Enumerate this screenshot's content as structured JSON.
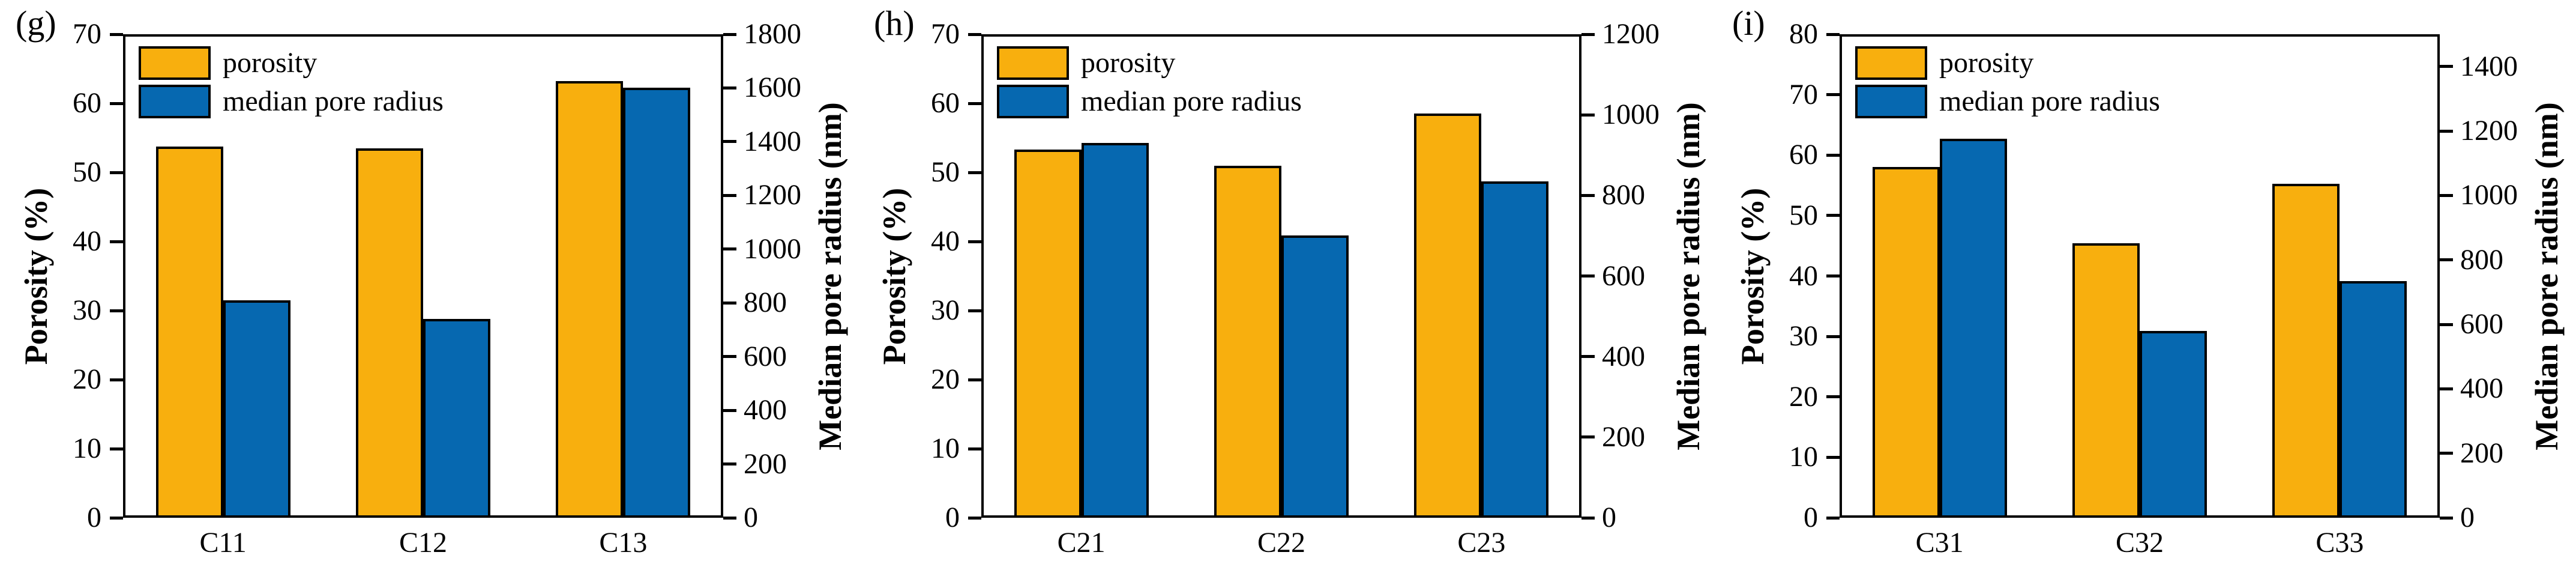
{
  "colors": {
    "porosity_bar": "#F8AF0E",
    "median_bar": "#0668B0",
    "axis": "#000000",
    "background": "#FFFFFF"
  },
  "legend": {
    "porosity": "porosity",
    "median": "median pore radius",
    "position": "top-left"
  },
  "chart_data": [
    {
      "type": "bar",
      "panel_label": "(g)",
      "title": "",
      "categories": [
        "C11",
        "C12",
        "C13"
      ],
      "left_axis": {
        "title": "Porosity (%)",
        "min": 0,
        "max": 70,
        "step": 10,
        "tick_max": 70
      },
      "right_axis": {
        "title": "Median pore radius (nm)",
        "min": 0,
        "max": 1800,
        "step": 200,
        "tick_max": 1800
      },
      "series": [
        {
          "name": "porosity",
          "axis": "left",
          "values": [
            53.7,
            53.5,
            63.2
          ]
        },
        {
          "name": "median pore radius",
          "axis": "right",
          "values": [
            810,
            740,
            1600
          ]
        }
      ],
      "grid": false
    },
    {
      "type": "bar",
      "panel_label": "(h)",
      "title": "",
      "categories": [
        "C21",
        "C22",
        "C23"
      ],
      "left_axis": {
        "title": "Porosity (%)",
        "min": 0,
        "max": 70,
        "step": 10,
        "tick_max": 70
      },
      "right_axis": {
        "title": "Median pore radius (nm)",
        "min": 0,
        "max": 1200,
        "step": 200,
        "tick_max": 1200
      },
      "series": [
        {
          "name": "porosity",
          "axis": "left",
          "values": [
            53.3,
            51.0,
            58.5
          ]
        },
        {
          "name": "median pore radius",
          "axis": "right",
          "values": [
            930,
            700,
            835
          ]
        }
      ],
      "grid": false
    },
    {
      "type": "bar",
      "panel_label": "(i)",
      "title": "",
      "categories": [
        "C31",
        "C32",
        "C33"
      ],
      "left_axis": {
        "title": "Porosity (%)",
        "min": 0,
        "max": 80,
        "step": 10,
        "tick_max": 80
      },
      "right_axis": {
        "title": "Median pore radius (nm)",
        "min": 0,
        "max": 1500,
        "step": 200,
        "tick_max": 1400
      },
      "series": [
        {
          "name": "porosity",
          "axis": "left",
          "values": [
            58.0,
            45.4,
            55.3
          ]
        },
        {
          "name": "median pore radius",
          "axis": "right",
          "values": [
            1175,
            580,
            735
          ]
        }
      ],
      "grid": false
    }
  ]
}
